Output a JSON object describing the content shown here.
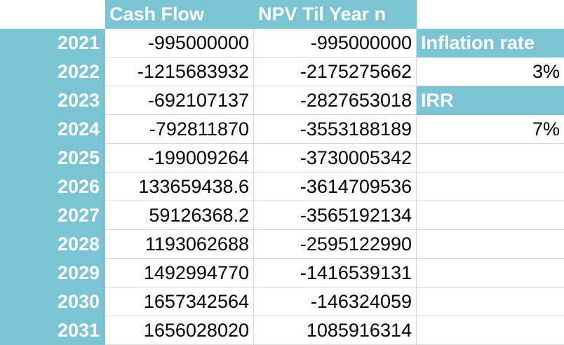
{
  "headers": {
    "cash_flow": "Cash Flow",
    "npv": "NPV Til Year n"
  },
  "rows": [
    {
      "year": "2021",
      "cash_flow": "-995000000",
      "npv": "-995000000"
    },
    {
      "year": "2022",
      "cash_flow": "-1215683932",
      "npv": "-2175275662"
    },
    {
      "year": "2023",
      "cash_flow": "-692107137",
      "npv": "-2827653018"
    },
    {
      "year": "2024",
      "cash_flow": "-792811870",
      "npv": "-3553188189"
    },
    {
      "year": "2025",
      "cash_flow": "-199009264",
      "npv": "-3730005342"
    },
    {
      "year": "2026",
      "cash_flow": "133659438.6",
      "npv": "-3614709536"
    },
    {
      "year": "2027",
      "cash_flow": "59126368.2",
      "npv": "-3565192134"
    },
    {
      "year": "2028",
      "cash_flow": "1193062688",
      "npv": "-2595122990"
    },
    {
      "year": "2029",
      "cash_flow": "1492994770",
      "npv": "-1416539131"
    },
    {
      "year": "2030",
      "cash_flow": "1657342564",
      "npv": "-146324059"
    },
    {
      "year": "2031",
      "cash_flow": "1656028020",
      "npv": "1085916314"
    }
  ],
  "side": {
    "inflation_label": "Inflation rate",
    "inflation_value": "3%",
    "irr_label": "IRR",
    "irr_value": "7%"
  },
  "colors": {
    "accent": "#7ac4d3",
    "grid": "#d9d9d9"
  }
}
